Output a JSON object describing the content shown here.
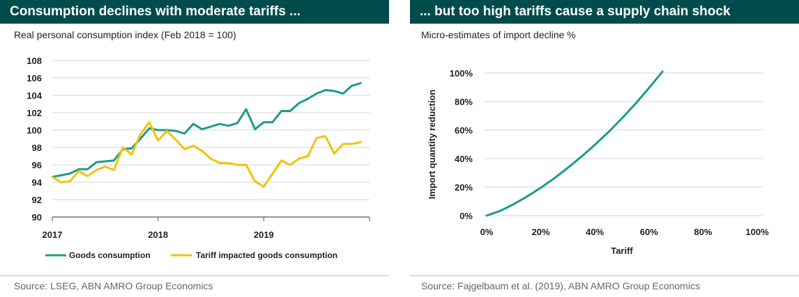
{
  "left": {
    "title": "Consumption declines with moderate tariffs ...",
    "subtitle": "Real personal consumption index (Feb 2018 = 100)",
    "source": "Source: LSEG, ABN AMRO Group Economics"
  },
  "right": {
    "title": "... but too high tariffs cause a supply chain shock",
    "subtitle": "Micro-estimates of import decline  %",
    "source": "Source: Fajgelbaum et al. (2019), ABN AMRO Group Economics"
  },
  "colors": {
    "header_bg": "#004c4c",
    "teal": "#1a9b8c",
    "yellow": "#f2c20c",
    "grid": "#d6d6d6"
  },
  "chart_data": [
    {
      "type": "line",
      "title": "Consumption declines with moderate tariffs ...",
      "subtitle": "Real personal consumption index (Feb 2018 = 100)",
      "xlabel": "",
      "ylabel": "",
      "x_ticks": [
        "2017",
        "2018",
        "2019"
      ],
      "x_tick_values": [
        2017,
        2018,
        2019
      ],
      "xlim": [
        2017,
        2020
      ],
      "y_ticks": [
        "90",
        "92",
        "94",
        "96",
        "98",
        "100",
        "102",
        "104",
        "106",
        "108"
      ],
      "ylim": [
        90,
        108
      ],
      "grid": true,
      "legend_position": "bottom",
      "series": [
        {
          "name": "Goods consumption",
          "color": "#1a9b8c",
          "x": [
            2017.0,
            2017.083,
            2017.167,
            2017.25,
            2017.333,
            2017.417,
            2017.5,
            2017.583,
            2017.667,
            2017.75,
            2017.833,
            2017.917,
            2018.0,
            2018.083,
            2018.167,
            2018.25,
            2018.333,
            2018.417,
            2018.5,
            2018.583,
            2018.667,
            2018.75,
            2018.833,
            2018.917,
            2019.0,
            2019.083,
            2019.167,
            2019.25,
            2019.333,
            2019.417,
            2019.5,
            2019.583,
            2019.667,
            2019.75,
            2019.833,
            2019.917
          ],
          "values": [
            94.6,
            94.8,
            95.0,
            95.5,
            95.5,
            96.3,
            96.4,
            96.5,
            97.8,
            97.9,
            99.0,
            100.2,
            100.0,
            100.0,
            99.9,
            99.6,
            100.7,
            100.1,
            100.4,
            100.7,
            100.5,
            100.8,
            102.4,
            100.1,
            100.9,
            100.9,
            102.2,
            102.2,
            103.1,
            103.6,
            104.2,
            104.6,
            104.5,
            104.2,
            105.1,
            105.4
          ]
        },
        {
          "name": "Tariff impacted goods consumption",
          "color": "#f2c20c",
          "x": [
            2017.0,
            2017.083,
            2017.167,
            2017.25,
            2017.333,
            2017.417,
            2017.5,
            2017.583,
            2017.667,
            2017.75,
            2017.833,
            2017.917,
            2018.0,
            2018.083,
            2018.167,
            2018.25,
            2018.333,
            2018.417,
            2018.5,
            2018.583,
            2018.667,
            2018.75,
            2018.833,
            2018.917,
            2019.0,
            2019.083,
            2019.167,
            2019.25,
            2019.333,
            2019.417,
            2019.5,
            2019.583,
            2019.667,
            2019.75,
            2019.833,
            2019.917
          ],
          "values": [
            94.6,
            94.0,
            94.1,
            95.3,
            94.7,
            95.4,
            95.8,
            95.4,
            98.0,
            97.2,
            99.5,
            100.9,
            98.8,
            99.9,
            98.9,
            97.8,
            98.2,
            97.6,
            96.7,
            96.2,
            96.2,
            96.0,
            96.0,
            94.1,
            93.5,
            95.0,
            96.5,
            96.0,
            96.7,
            97.0,
            99.1,
            99.3,
            97.3,
            98.4,
            98.4,
            98.6
          ]
        }
      ]
    },
    {
      "type": "line",
      "title": "... but too high tariffs cause a supply chain shock",
      "subtitle": "Micro-estimates of import decline  %",
      "xlabel": "Tariff",
      "ylabel": "Import quantity reduction",
      "x_ticks": [
        "0%",
        "20%",
        "40%",
        "60%",
        "80%",
        "100%"
      ],
      "xlim": [
        0,
        100
      ],
      "y_ticks": [
        "0%",
        "20%",
        "40%",
        "60%",
        "80%",
        "100%"
      ],
      "ylim": [
        0,
        100
      ],
      "grid": true,
      "series": [
        {
          "color": "#1a9b8c",
          "x": [
            0,
            5,
            10,
            15,
            20,
            25,
            30,
            35,
            40,
            45,
            50,
            55,
            60,
            65
          ],
          "values": [
            0,
            3.3,
            8.0,
            13.5,
            19.5,
            26.2,
            33.5,
            41.3,
            49.6,
            58.6,
            68.2,
            78.5,
            89.5,
            101
          ]
        }
      ]
    }
  ],
  "legend": {
    "labels": [
      "Goods consumption",
      "Tariff impacted goods consumption"
    ]
  }
}
